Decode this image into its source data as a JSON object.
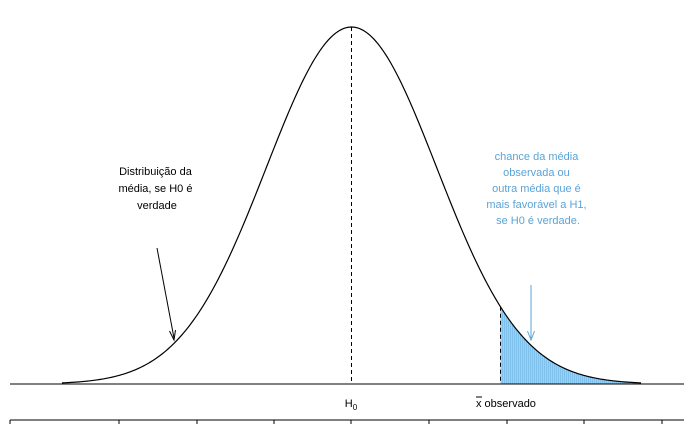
{
  "chart_data": {
    "type": "area",
    "title": "",
    "xlabel": "",
    "ylabel": "",
    "curve": {
      "name": "",
      "mean": 0,
      "sd": 1,
      "xlim": [
        -3.4,
        3.4
      ]
    },
    "shaded_region": {
      "from": 1.75,
      "to": 3.4
    },
    "tick_labels": {
      "h0": {
        "text": "H",
        "sub": "0"
      },
      "xbar": {
        "bar": "x",
        "rest": " observado"
      }
    },
    "annotations": {
      "left": [
        "Distribuição da",
        "média, se H0 é",
        "verdade"
      ],
      "right": [
        "chance da média",
        "observada ou",
        "outra média que é",
        "mais favorável a H1,",
        "se H0 é verdade."
      ]
    },
    "colors": {
      "curve": "#000000",
      "shade": "#9fd0f0",
      "shade_stroke": "#6cb8e8",
      "annotation_right": "#5ba3d6",
      "arrow_right": "#5ba3d6"
    }
  }
}
